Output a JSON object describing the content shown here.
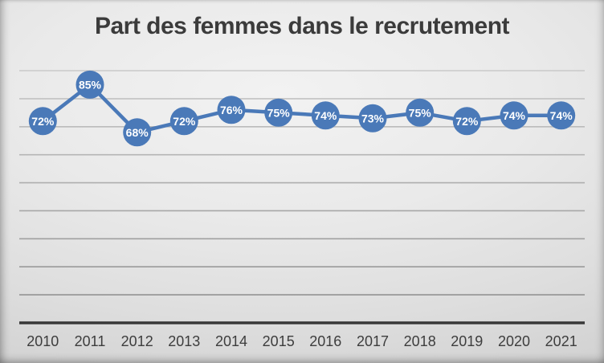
{
  "chart_data": {
    "type": "line",
    "title": "Part des femmes dans le recrutement",
    "categories": [
      "2010",
      "2011",
      "2012",
      "2013",
      "2014",
      "2015",
      "2016",
      "2017",
      "2018",
      "2019",
      "2020",
      "2021"
    ],
    "values": [
      72,
      85,
      68,
      72,
      76,
      75,
      74,
      73,
      75,
      72,
      74,
      74
    ],
    "point_labels": [
      "72%",
      "85%",
      "68%",
      "72%",
      "76%",
      "75%",
      "74%",
      "73%",
      "75%",
      "72%",
      "74%",
      "74%"
    ],
    "xlabel": "",
    "ylabel": "",
    "ylim": [
      0,
      90
    ],
    "grid_step": 10,
    "grid": "horizontal",
    "legend_position": "none",
    "colors": {
      "line": "#4a79b8",
      "marker_fill": "#4a79b8",
      "point_label_text": "#ffffff",
      "axis_line": "#383838",
      "tick_label_text": "#3d3d3d",
      "title_text": "#3b3b3b",
      "grid_color_top": "#c9c9c9",
      "grid_color_bottom": "#8c8c8c"
    }
  }
}
